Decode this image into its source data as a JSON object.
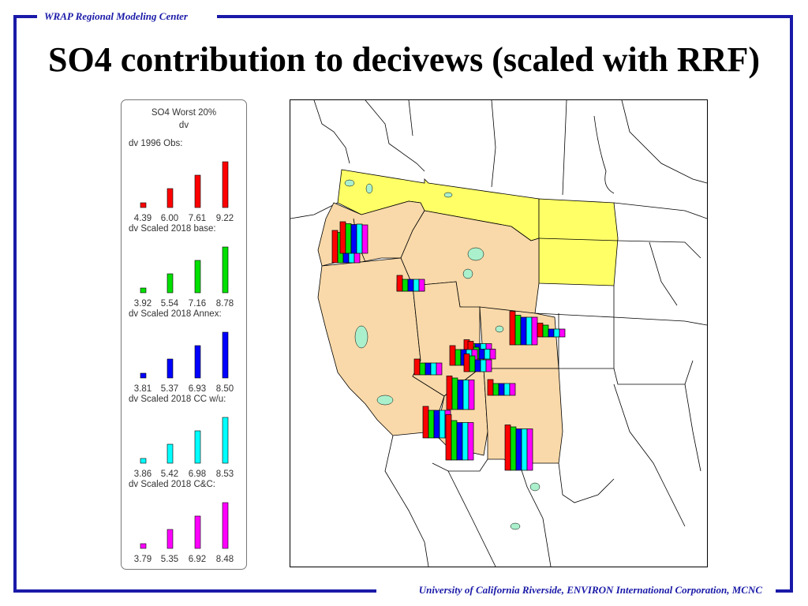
{
  "header": {
    "org": "WRAP Regional Modeling Center"
  },
  "title": "SO4 contribution to decivews (scaled with RRF)",
  "footer": {
    "credits": "University of California Riverside, ENVIRON International Corporation, MCNC"
  },
  "colors": {
    "frame": "#1a1aa8",
    "obs": "#ff0000",
    "base": "#00e000",
    "annex": "#0000ff",
    "cc": "#00ffff",
    "cnc": "#ff00ff",
    "state_fill": "#f9d9a9",
    "highlight_state": "#ffff66",
    "lakes": "#aaf0cc"
  },
  "legend": {
    "title": "SO4 Worst 20%",
    "unit": "dv",
    "groups": [
      {
        "label": "dv 1996 Obs:",
        "color": "#ff0000",
        "values": [
          "4.39",
          "6.00",
          "7.61",
          "9.22"
        ]
      },
      {
        "label": "dv Scaled 2018 base:",
        "color": "#00e000",
        "values": [
          "3.92",
          "5.54",
          "7.16",
          "8.78"
        ]
      },
      {
        "label": "dv Scaled 2018 Annex:",
        "color": "#0000ff",
        "values": [
          "3.81",
          "5.37",
          "6.93",
          "8.50"
        ]
      },
      {
        "label": "dv Scaled 2018 CC w/u:",
        "color": "#00ffff",
        "values": [
          "3.86",
          "5.42",
          "6.98",
          "8.53"
        ]
      },
      {
        "label": "dv Scaled 2018 C&C:",
        "color": "#ff00ff",
        "values": [
          "3.79",
          "5.35",
          "6.92",
          "8.48"
        ]
      }
    ]
  },
  "map": {
    "scenario_colors": [
      "#ff0000",
      "#00e000",
      "#0000ff",
      "#00ffff",
      "#ff00ff"
    ],
    "sites": [
      [
        8.2,
        7.7,
        7.5,
        7.6,
        7.4
      ],
      [
        8.0,
        7.5,
        7.3,
        7.4,
        7.2
      ],
      [
        2.0,
        1.0,
        1.0,
        1.0,
        1.0
      ],
      [
        4.0,
        3.0,
        3.0,
        3.0,
        3.0
      ],
      [
        2.5,
        1.5,
        1.5,
        1.5,
        1.5
      ],
      [
        4.5,
        3.0,
        2.5,
        2.5,
        2.5
      ],
      [
        8.5,
        7.5,
        7.0,
        7.0,
        7.0
      ],
      [
        3.5,
        3.0,
        2.0,
        2.0,
        2.0
      ],
      [
        4.0,
        3.0,
        3.0,
        3.0,
        3.0
      ],
      [
        5.0,
        4.0,
        4.0,
        4.0,
        4.0
      ],
      [
        4.5,
        4.0,
        3.0,
        3.0,
        3.0
      ],
      [
        4.0,
        3.0,
        3.0,
        3.0,
        3.0
      ],
      [
        8.5,
        8.0,
        7.5,
        7.5,
        7.5
      ],
      [
        8.0,
        7.0,
        7.0,
        7.0,
        7.0
      ],
      [
        11.5,
        10.0,
        9.5,
        9.5,
        9.5
      ],
      [
        11.5,
        11.0,
        10.5,
        10.5,
        10.5
      ]
    ]
  }
}
